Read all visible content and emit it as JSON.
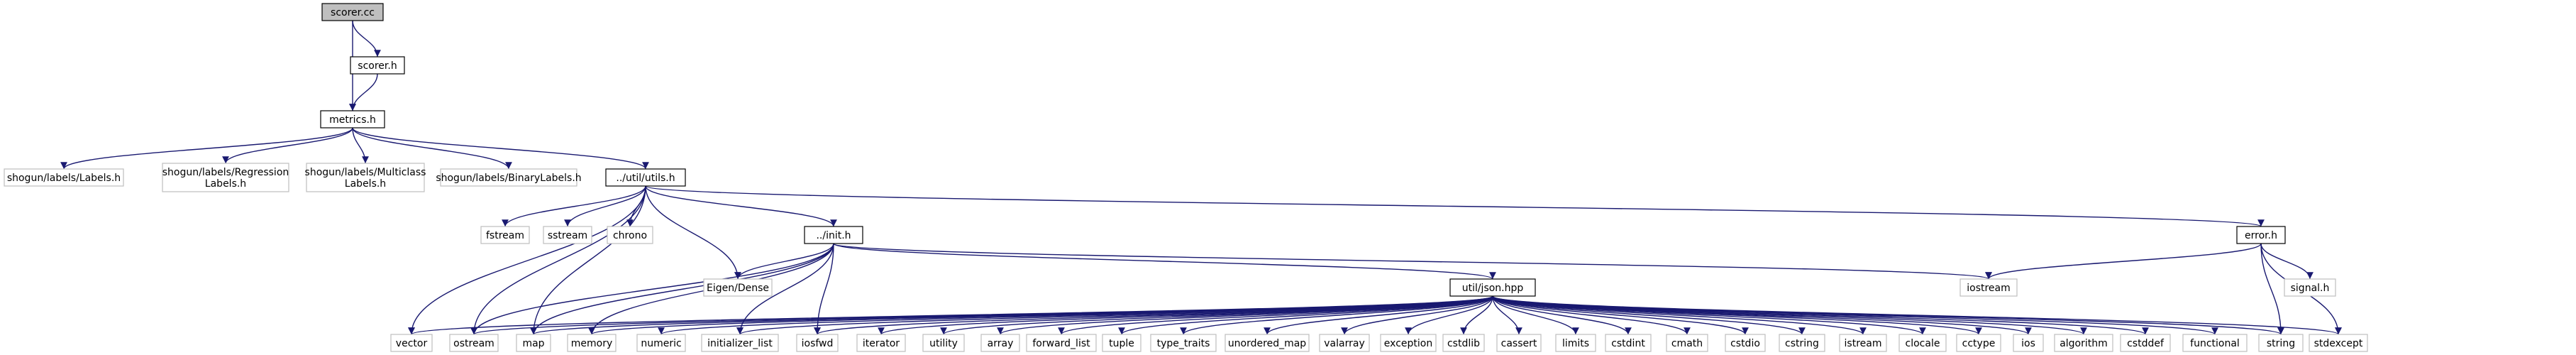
{
  "colors": {
    "edge": "#191970",
    "root_fill": "#bfbfbf",
    "documented_border": "#000000",
    "external_border": "#bfbfbf"
  },
  "nodes": [
    {
      "id": "scorer_cc",
      "label": [
        "scorer.cc"
      ],
      "kind": "root"
    },
    {
      "id": "scorer_h",
      "label": [
        "scorer.h"
      ],
      "kind": "documented"
    },
    {
      "id": "metrics_h",
      "label": [
        "metrics.h"
      ],
      "kind": "documented"
    },
    {
      "id": "labels_h",
      "label": [
        "shogun/labels/Labels.h"
      ],
      "kind": "external"
    },
    {
      "id": "regression_h",
      "label": [
        "shogun/labels/Regression",
        "Labels.h"
      ],
      "kind": "external"
    },
    {
      "id": "multiclass_h",
      "label": [
        "shogun/labels/Multiclass",
        "Labels.h"
      ],
      "kind": "external"
    },
    {
      "id": "binary_h",
      "label": [
        "shogun/labels/BinaryLabels.h"
      ],
      "kind": "external"
    },
    {
      "id": "utils_h",
      "label": [
        "../util/utils.h"
      ],
      "kind": "documented"
    },
    {
      "id": "fstream",
      "label": [
        "fstream"
      ],
      "kind": "external"
    },
    {
      "id": "sstream",
      "label": [
        "sstream"
      ],
      "kind": "external"
    },
    {
      "id": "chrono",
      "label": [
        "chrono"
      ],
      "kind": "external"
    },
    {
      "id": "init_h",
      "label": [
        "../init.h"
      ],
      "kind": "documented"
    },
    {
      "id": "error_h",
      "label": [
        "error.h"
      ],
      "kind": "documented"
    },
    {
      "id": "eigen",
      "label": [
        "Eigen/Dense"
      ],
      "kind": "external"
    },
    {
      "id": "json_hpp",
      "label": [
        "util/json.hpp"
      ],
      "kind": "documented"
    },
    {
      "id": "iostream",
      "label": [
        "iostream"
      ],
      "kind": "external"
    },
    {
      "id": "signal_h",
      "label": [
        "signal.h"
      ],
      "kind": "external"
    },
    {
      "id": "vector",
      "label": [
        "vector"
      ],
      "kind": "external"
    },
    {
      "id": "ostream",
      "label": [
        "ostream"
      ],
      "kind": "external"
    },
    {
      "id": "map",
      "label": [
        "map"
      ],
      "kind": "external"
    },
    {
      "id": "memory",
      "label": [
        "memory"
      ],
      "kind": "external"
    },
    {
      "id": "numeric",
      "label": [
        "numeric"
      ],
      "kind": "external"
    },
    {
      "id": "initializer_list",
      "label": [
        "initializer_list"
      ],
      "kind": "external"
    },
    {
      "id": "iosfwd",
      "label": [
        "iosfwd"
      ],
      "kind": "external"
    },
    {
      "id": "iterator",
      "label": [
        "iterator"
      ],
      "kind": "external"
    },
    {
      "id": "utility",
      "label": [
        "utility"
      ],
      "kind": "external"
    },
    {
      "id": "array",
      "label": [
        "array"
      ],
      "kind": "external"
    },
    {
      "id": "forward_list",
      "label": [
        "forward_list"
      ],
      "kind": "external"
    },
    {
      "id": "tuple",
      "label": [
        "tuple"
      ],
      "kind": "external"
    },
    {
      "id": "type_traits",
      "label": [
        "type_traits"
      ],
      "kind": "external"
    },
    {
      "id": "unordered_map",
      "label": [
        "unordered_map"
      ],
      "kind": "external"
    },
    {
      "id": "valarray",
      "label": [
        "valarray"
      ],
      "kind": "external"
    },
    {
      "id": "exception",
      "label": [
        "exception"
      ],
      "kind": "external"
    },
    {
      "id": "cstdlib",
      "label": [
        "cstdlib"
      ],
      "kind": "external"
    },
    {
      "id": "cassert",
      "label": [
        "cassert"
      ],
      "kind": "external"
    },
    {
      "id": "limits",
      "label": [
        "limits"
      ],
      "kind": "external"
    },
    {
      "id": "cstdint",
      "label": [
        "cstdint"
      ],
      "kind": "external"
    },
    {
      "id": "cmath",
      "label": [
        "cmath"
      ],
      "kind": "external"
    },
    {
      "id": "cstdio",
      "label": [
        "cstdio"
      ],
      "kind": "external"
    },
    {
      "id": "cstring",
      "label": [
        "cstring"
      ],
      "kind": "external"
    },
    {
      "id": "istream",
      "label": [
        "istream"
      ],
      "kind": "external"
    },
    {
      "id": "clocale",
      "label": [
        "clocale"
      ],
      "kind": "external"
    },
    {
      "id": "cctype",
      "label": [
        "cctype"
      ],
      "kind": "external"
    },
    {
      "id": "ios",
      "label": [
        "ios"
      ],
      "kind": "external"
    },
    {
      "id": "algorithm",
      "label": [
        "algorithm"
      ],
      "kind": "external"
    },
    {
      "id": "cstddef",
      "label": [
        "cstddef"
      ],
      "kind": "external"
    },
    {
      "id": "functional",
      "label": [
        "functional"
      ],
      "kind": "external"
    },
    {
      "id": "string",
      "label": [
        "string"
      ],
      "kind": "external"
    },
    {
      "id": "stdexcept",
      "label": [
        "stdexcept"
      ],
      "kind": "external"
    }
  ],
  "edges": [
    [
      "scorer_cc",
      "scorer_h"
    ],
    [
      "scorer_cc",
      "metrics_h"
    ],
    [
      "scorer_h",
      "metrics_h"
    ],
    [
      "metrics_h",
      "labels_h"
    ],
    [
      "metrics_h",
      "regression_h"
    ],
    [
      "metrics_h",
      "multiclass_h"
    ],
    [
      "metrics_h",
      "binary_h"
    ],
    [
      "metrics_h",
      "utils_h"
    ],
    [
      "utils_h",
      "fstream"
    ],
    [
      "utils_h",
      "sstream"
    ],
    [
      "utils_h",
      "chrono"
    ],
    [
      "utils_h",
      "init_h"
    ],
    [
      "utils_h",
      "error_h"
    ],
    [
      "utils_h",
      "eigen"
    ],
    [
      "utils_h",
      "vector"
    ],
    [
      "utils_h",
      "ostream"
    ],
    [
      "utils_h",
      "map"
    ],
    [
      "init_h",
      "eigen"
    ],
    [
      "init_h",
      "json_hpp"
    ],
    [
      "init_h",
      "iostream"
    ],
    [
      "init_h",
      "ostream"
    ],
    [
      "init_h",
      "map"
    ],
    [
      "init_h",
      "memory"
    ],
    [
      "init_h",
      "initializer_list"
    ],
    [
      "init_h",
      "iosfwd"
    ],
    [
      "error_h",
      "iostream"
    ],
    [
      "error_h",
      "signal_h"
    ],
    [
      "error_h",
      "string"
    ],
    [
      "error_h",
      "stdexcept"
    ],
    [
      "json_hpp",
      "vector"
    ],
    [
      "json_hpp",
      "ostream"
    ],
    [
      "json_hpp",
      "map"
    ],
    [
      "json_hpp",
      "memory"
    ],
    [
      "json_hpp",
      "numeric"
    ],
    [
      "json_hpp",
      "initializer_list"
    ],
    [
      "json_hpp",
      "iosfwd"
    ],
    [
      "json_hpp",
      "iterator"
    ],
    [
      "json_hpp",
      "utility"
    ],
    [
      "json_hpp",
      "array"
    ],
    [
      "json_hpp",
      "forward_list"
    ],
    [
      "json_hpp",
      "tuple"
    ],
    [
      "json_hpp",
      "type_traits"
    ],
    [
      "json_hpp",
      "unordered_map"
    ],
    [
      "json_hpp",
      "valarray"
    ],
    [
      "json_hpp",
      "exception"
    ],
    [
      "json_hpp",
      "cstdlib"
    ],
    [
      "json_hpp",
      "cassert"
    ],
    [
      "json_hpp",
      "limits"
    ],
    [
      "json_hpp",
      "cstdint"
    ],
    [
      "json_hpp",
      "cmath"
    ],
    [
      "json_hpp",
      "cstdio"
    ],
    [
      "json_hpp",
      "cstring"
    ],
    [
      "json_hpp",
      "istream"
    ],
    [
      "json_hpp",
      "clocale"
    ],
    [
      "json_hpp",
      "cctype"
    ],
    [
      "json_hpp",
      "ios"
    ],
    [
      "json_hpp",
      "algorithm"
    ],
    [
      "json_hpp",
      "cstddef"
    ],
    [
      "json_hpp",
      "functional"
    ],
    [
      "json_hpp",
      "string"
    ],
    [
      "json_hpp",
      "stdexcept"
    ]
  ]
}
